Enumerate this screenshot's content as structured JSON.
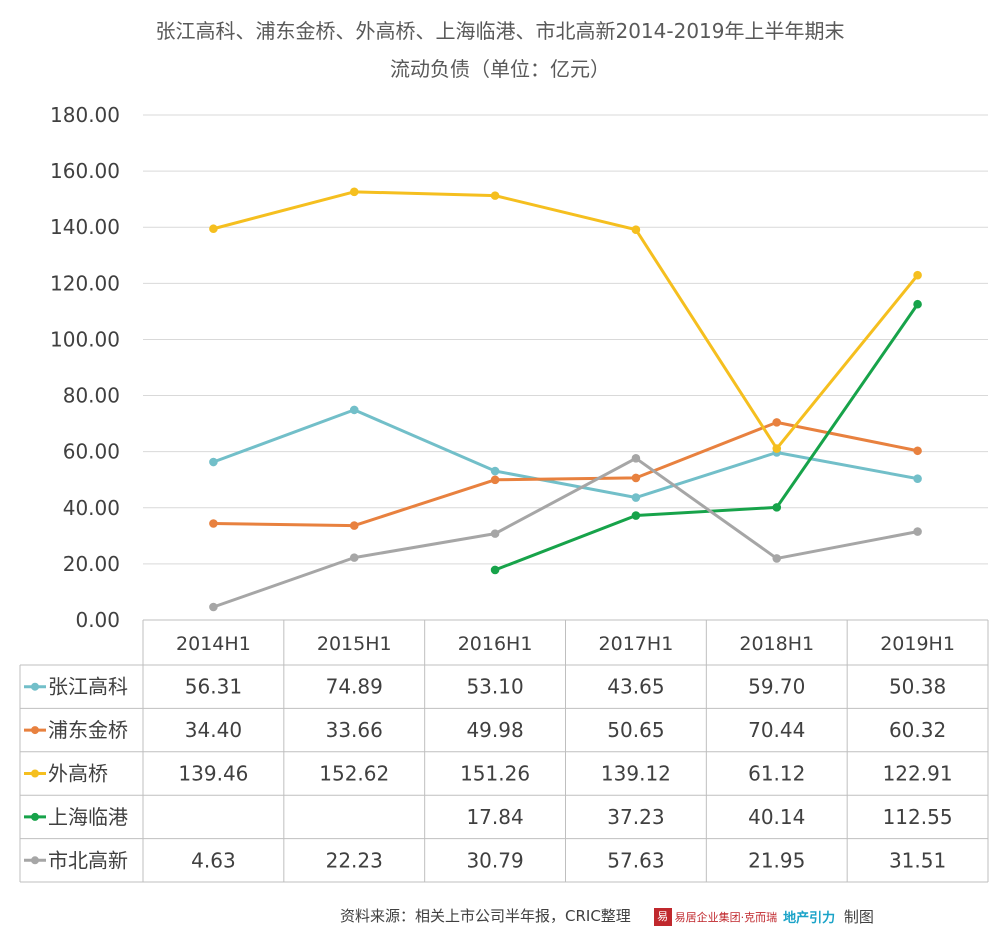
{
  "chart_data": {
    "type": "line",
    "title_line1": "张江高科、浦东金桥、外高桥、上海临港、市北高新2014-2019年上半年期末",
    "title_line2": "流动负债（单位：亿元）",
    "categories": [
      "2014H1",
      "2015H1",
      "2016H1",
      "2017H1",
      "2018H1",
      "2019H1"
    ],
    "ylim": [
      0,
      180
    ],
    "yticks": [
      "0.00",
      "20.00",
      "40.00",
      "60.00",
      "80.00",
      "100.00",
      "120.00",
      "140.00",
      "160.00",
      "180.00"
    ],
    "grid": true,
    "legend": "data-table",
    "series": [
      {
        "name": "张江高科",
        "color": "#72bfc9",
        "values": [
          56.31,
          74.89,
          53.1,
          43.65,
          59.7,
          50.38
        ],
        "labels": [
          "56.31",
          "74.89",
          "53.10",
          "43.65",
          "59.70",
          "50.38"
        ]
      },
      {
        "name": "浦东金桥",
        "color": "#e8813f",
        "values": [
          34.4,
          33.66,
          49.98,
          50.65,
          70.44,
          60.32
        ],
        "labels": [
          "34.40",
          "33.66",
          "49.98",
          "50.65",
          "70.44",
          "60.32"
        ]
      },
      {
        "name": "外高桥",
        "color": "#f5bf1f",
        "values": [
          139.46,
          152.62,
          151.26,
          139.12,
          61.12,
          122.91
        ],
        "labels": [
          "139.46",
          "152.62",
          "151.26",
          "139.12",
          "61.12",
          "122.91"
        ]
      },
      {
        "name": "上海临港",
        "color": "#17a34a",
        "values": [
          null,
          null,
          17.84,
          37.23,
          40.14,
          112.55
        ],
        "labels": [
          "",
          "",
          "17.84",
          "37.23",
          "40.14",
          "112.55"
        ]
      },
      {
        "name": "市北高新",
        "color": "#a6a6a6",
        "values": [
          4.63,
          22.23,
          30.79,
          57.63,
          21.95,
          31.51
        ],
        "labels": [
          "4.63",
          "22.23",
          "30.79",
          "57.63",
          "21.95",
          "31.51"
        ]
      }
    ]
  },
  "footer": {
    "source": "资料来源：相关上市公司半年报，CRIC整理",
    "logo_mark": "易",
    "logo_text": "易居企业集团·克而瑞",
    "logo_text2": "地产引力",
    "made": "制图"
  }
}
